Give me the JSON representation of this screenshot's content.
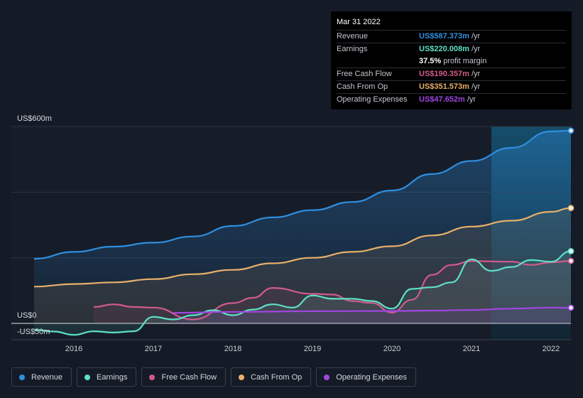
{
  "chart_data": {
    "type": "area",
    "ylabel_top": "US$600m",
    "ylabel_zero": "US$0",
    "ylabel_bottom": "-US$50m",
    "ylim": [
      -50,
      600
    ],
    "xlim": [
      2015.5,
      2022.25
    ],
    "x_ticks": [
      {
        "value": 2016,
        "label": "2016"
      },
      {
        "value": 2017,
        "label": "2017"
      },
      {
        "value": 2018,
        "label": "2018"
      },
      {
        "value": 2019,
        "label": "2019"
      },
      {
        "value": 2020,
        "label": "2020"
      },
      {
        "value": 2021,
        "label": "2021"
      },
      {
        "value": 2022,
        "label": "2022"
      }
    ],
    "highlight_from": 2021.25,
    "series": [
      {
        "key": "revenue",
        "name": "Revenue",
        "color": "#2f8fe0",
        "points": [
          [
            2015.5,
            197
          ],
          [
            2016,
            218
          ],
          [
            2016.5,
            234
          ],
          [
            2017,
            246
          ],
          [
            2017.5,
            265
          ],
          [
            2018,
            297
          ],
          [
            2018.5,
            323
          ],
          [
            2019,
            345
          ],
          [
            2019.5,
            370
          ],
          [
            2020,
            405
          ],
          [
            2020.5,
            455
          ],
          [
            2021,
            495
          ],
          [
            2021.5,
            535
          ],
          [
            2022,
            585
          ],
          [
            2022.25,
            587.4
          ]
        ]
      },
      {
        "key": "cash_from_op",
        "name": "Cash From Op",
        "color": "#e8b06a",
        "points": [
          [
            2015.5,
            112
          ],
          [
            2016,
            120
          ],
          [
            2016.5,
            125
          ],
          [
            2017,
            135
          ],
          [
            2017.5,
            150
          ],
          [
            2018,
            163
          ],
          [
            2018.5,
            183
          ],
          [
            2019,
            200
          ],
          [
            2019.5,
            218
          ],
          [
            2020,
            235
          ],
          [
            2020.5,
            268
          ],
          [
            2021,
            295
          ],
          [
            2021.5,
            313
          ],
          [
            2022,
            340
          ],
          [
            2022.25,
            351.6
          ]
        ]
      },
      {
        "key": "free_cash_flow",
        "name": "Free Cash Flow",
        "color": "#d05b8a",
        "points": [
          [
            2016.25,
            50
          ],
          [
            2016.5,
            58
          ],
          [
            2016.75,
            50
          ],
          [
            2017,
            48
          ],
          [
            2017.5,
            12
          ],
          [
            2018,
            62
          ],
          [
            2018.25,
            78
          ],
          [
            2018.5,
            108
          ],
          [
            2019,
            90
          ],
          [
            2019.25,
            88
          ],
          [
            2019.5,
            68
          ],
          [
            2019.75,
            62
          ],
          [
            2020,
            33
          ],
          [
            2020.25,
            72
          ],
          [
            2020.5,
            148
          ],
          [
            2020.75,
            178
          ],
          [
            2021,
            190
          ],
          [
            2021.5,
            188
          ],
          [
            2021.75,
            178
          ],
          [
            2022,
            186
          ],
          [
            2022.25,
            190.4
          ]
        ]
      },
      {
        "key": "earnings",
        "name": "Earnings",
        "color": "#5ee0c8",
        "points": [
          [
            2015.5,
            -20
          ],
          [
            2015.75,
            -25
          ],
          [
            2016,
            -35
          ],
          [
            2016.25,
            -24
          ],
          [
            2016.5,
            -28
          ],
          [
            2016.75,
            -24
          ],
          [
            2017,
            20
          ],
          [
            2017.25,
            12
          ],
          [
            2017.5,
            25
          ],
          [
            2017.75,
            40
          ],
          [
            2018,
            25
          ],
          [
            2018.25,
            42
          ],
          [
            2018.5,
            58
          ],
          [
            2018.75,
            48
          ],
          [
            2019,
            85
          ],
          [
            2019.25,
            75
          ],
          [
            2019.5,
            75
          ],
          [
            2019.75,
            68
          ],
          [
            2020,
            45
          ],
          [
            2020.25,
            105
          ],
          [
            2020.5,
            110
          ],
          [
            2020.75,
            125
          ],
          [
            2021,
            195
          ],
          [
            2021.25,
            160
          ],
          [
            2021.5,
            172
          ],
          [
            2021.75,
            193
          ],
          [
            2022,
            188
          ],
          [
            2022.25,
            220
          ]
        ]
      },
      {
        "key": "operating_expenses",
        "name": "Operating Expenses",
        "color": "#a046e0",
        "points": [
          [
            2017.25,
            32
          ],
          [
            2018,
            35
          ],
          [
            2019,
            37
          ],
          [
            2020,
            38
          ],
          [
            2020.5,
            39
          ],
          [
            2021,
            41
          ],
          [
            2021.5,
            45
          ],
          [
            2022,
            48
          ],
          [
            2022.25,
            47.7
          ]
        ]
      }
    ]
  },
  "tooltip": {
    "date": "Mar 31 2022",
    "rows": [
      {
        "label": "Revenue",
        "value": "US$587.373m",
        "unit": "/yr",
        "color": "#2f8fe0"
      },
      {
        "label": "Earnings",
        "value": "US$220.008m",
        "unit": "/yr",
        "color": "#5ee0c8"
      },
      {
        "label": "",
        "value": "37.5%",
        "unit": "profit margin",
        "color": "#ffffff"
      },
      {
        "label": "Free Cash Flow",
        "value": "US$190.357m",
        "unit": "/yr",
        "color": "#d05b8a"
      },
      {
        "label": "Cash From Op",
        "value": "US$351.573m",
        "unit": "/yr",
        "color": "#e8b06a"
      },
      {
        "label": "Operating Expenses",
        "value": "US$47.652m",
        "unit": "/yr",
        "color": "#a046e0"
      }
    ]
  },
  "legend": [
    {
      "label": "Revenue",
      "color": "#2f8fe0"
    },
    {
      "label": "Earnings",
      "color": "#5ee0c8"
    },
    {
      "label": "Free Cash Flow",
      "color": "#d05b8a"
    },
    {
      "label": "Cash From Op",
      "color": "#e8b06a"
    },
    {
      "label": "Operating Expenses",
      "color": "#a046e0"
    }
  ]
}
